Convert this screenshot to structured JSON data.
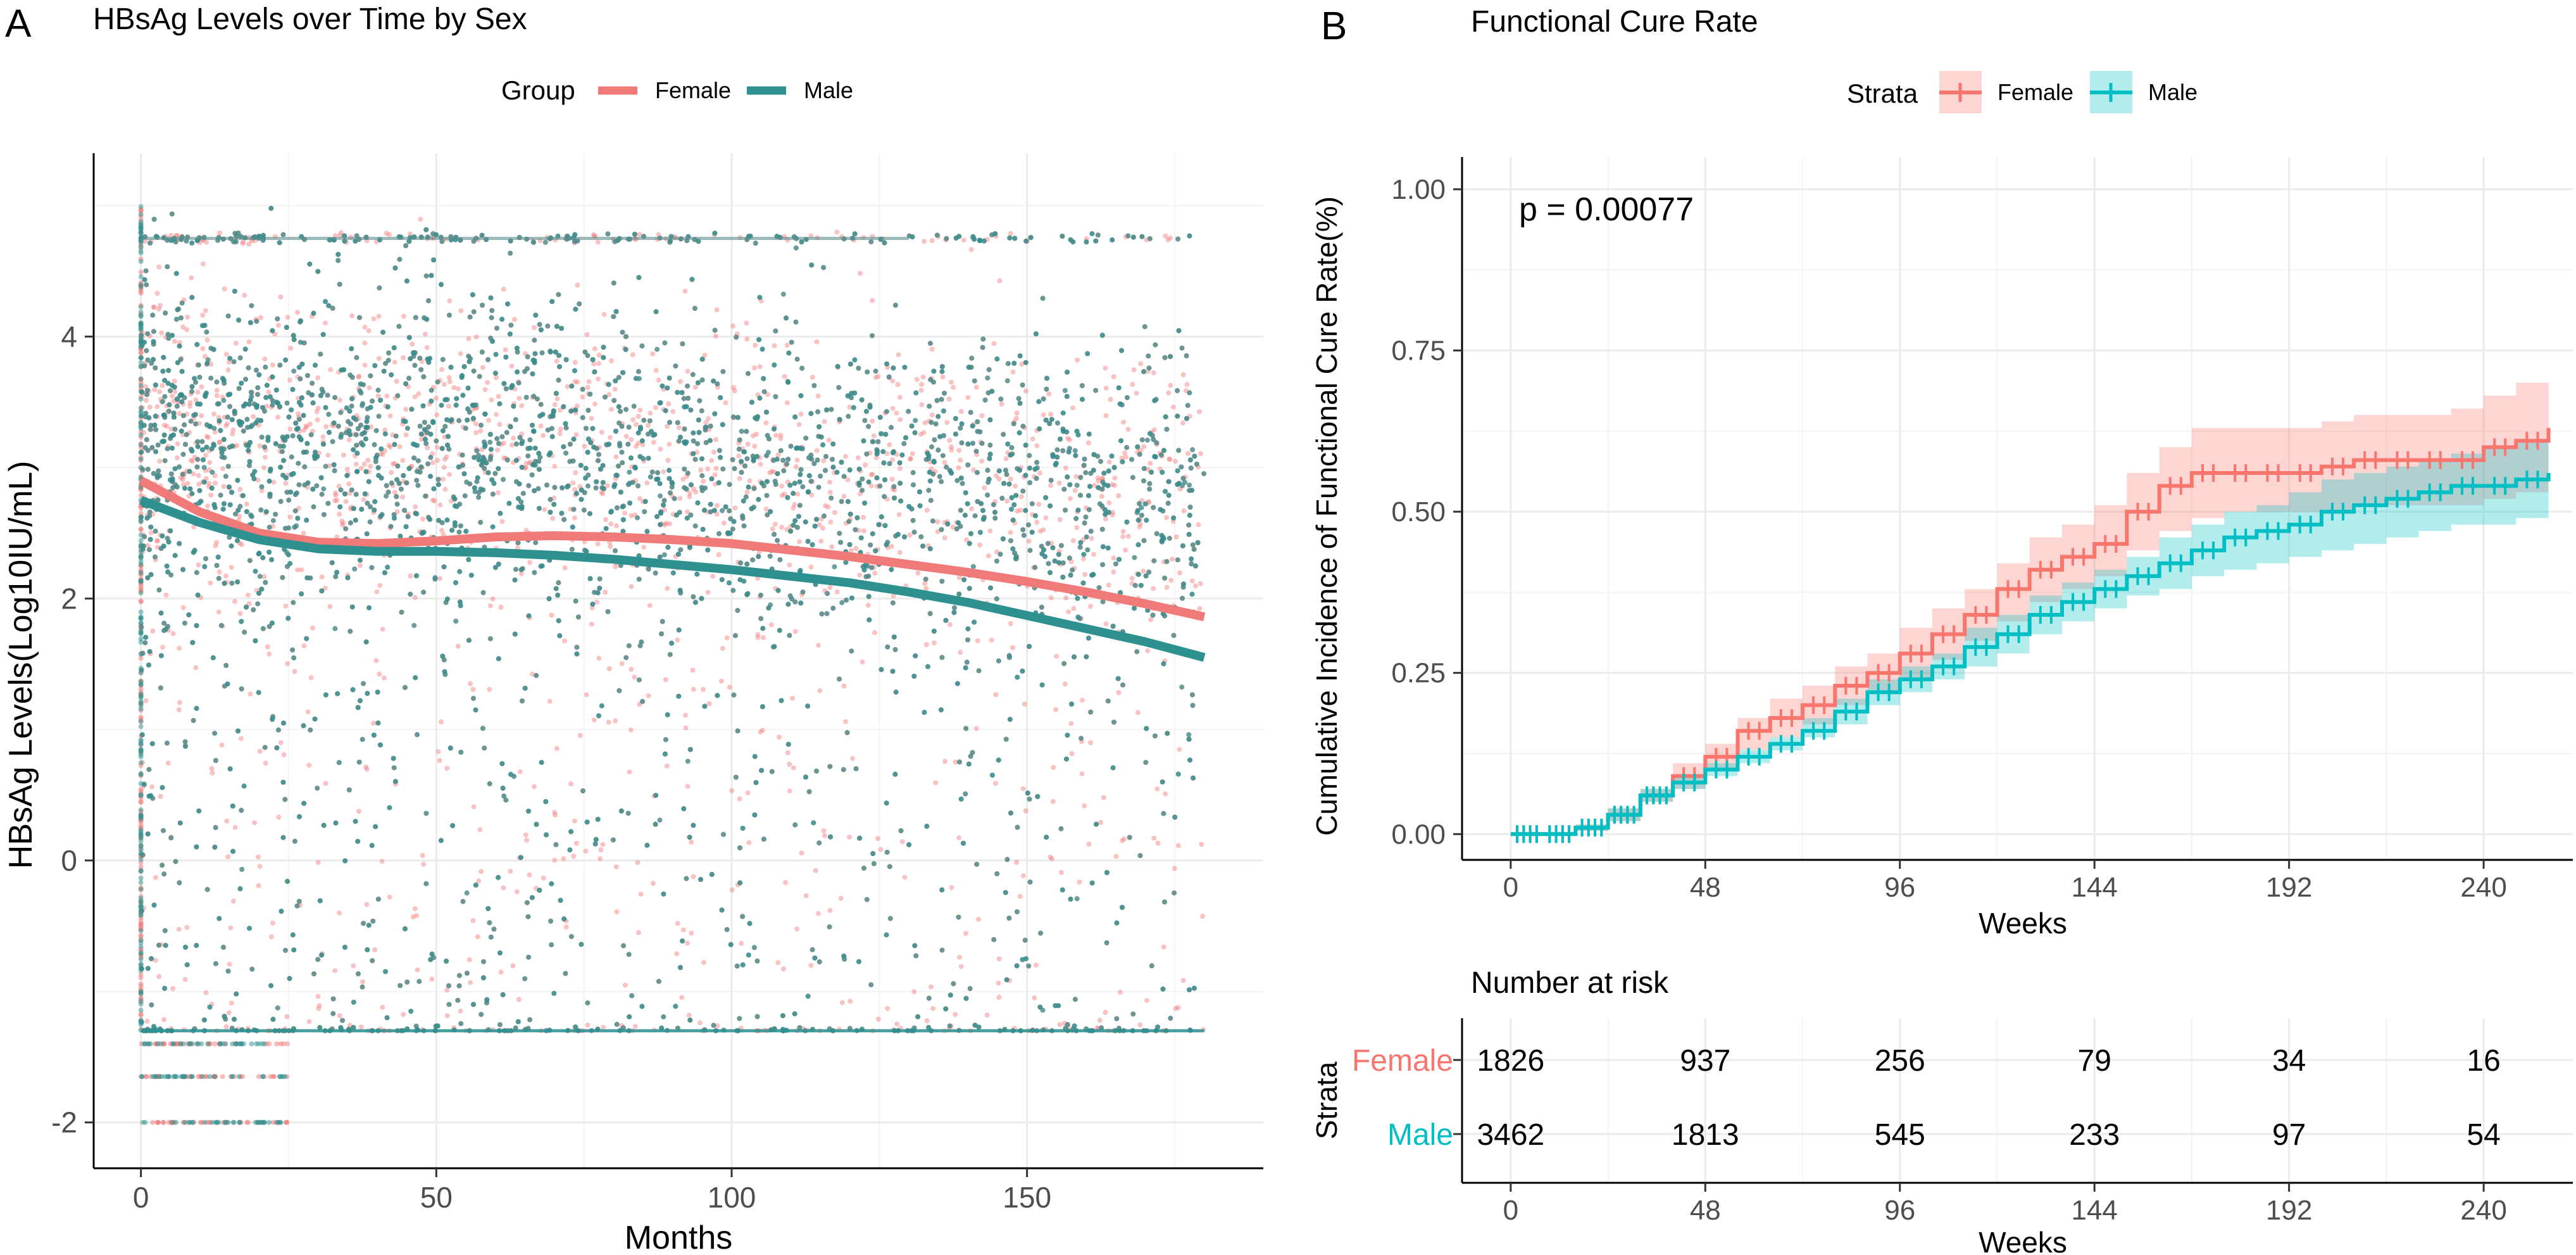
{
  "panel_labels": [
    "A",
    "B"
  ],
  "colors": {
    "female": "#F07A78",
    "male": "#2E9190",
    "female_km": "#F8766D",
    "male_km": "#00BFC4",
    "grid": "#EBEBEB",
    "axis": "#000000",
    "tick_text": "#4D4D4D"
  },
  "chart_data": [
    {
      "id": "A",
      "type": "scatter",
      "title": "HBsAg Levels over Time by Sex",
      "xlabel": "Months",
      "ylabel": "HBsAg Levels(Log10IU/mL)",
      "xlim": [
        -8,
        190
      ],
      "ylim": [
        -2.35,
        5.4
      ],
      "xticks": [
        0,
        50,
        100,
        150
      ],
      "yticks": [
        -2,
        0,
        2,
        4
      ],
      "grid": true,
      "legend": {
        "title": "Group",
        "position": "top",
        "entries": [
          "Female",
          "Male"
        ]
      },
      "series": [
        {
          "name": "Female",
          "smooth_x": [
            0,
            10,
            20,
            30,
            40,
            50,
            60,
            70,
            80,
            90,
            100,
            110,
            120,
            130,
            140,
            150,
            160,
            170,
            180
          ],
          "smooth_y": [
            2.9,
            2.66,
            2.5,
            2.43,
            2.42,
            2.44,
            2.47,
            2.48,
            2.47,
            2.45,
            2.42,
            2.37,
            2.32,
            2.26,
            2.2,
            2.13,
            2.05,
            1.96,
            1.86
          ]
        },
        {
          "name": "Male",
          "smooth_x": [
            0,
            10,
            20,
            30,
            40,
            50,
            60,
            70,
            80,
            90,
            100,
            110,
            120,
            130,
            140,
            150,
            160,
            170,
            180
          ],
          "smooth_y": [
            2.75,
            2.58,
            2.45,
            2.38,
            2.36,
            2.36,
            2.35,
            2.33,
            2.3,
            2.26,
            2.22,
            2.17,
            2.12,
            2.05,
            1.97,
            1.87,
            1.77,
            1.67,
            1.55
          ]
        }
      ],
      "scatter_model": {
        "points_per_series": 7000,
        "x_range": [
          0,
          180
        ],
        "y_range": [
          -1.3,
          5.0
        ],
        "floor_level": -1.3,
        "ceiling_level": 4.75,
        "early_low_levels": [
          -1.4,
          -1.65,
          -2.0
        ]
      }
    },
    {
      "id": "B",
      "type": "line",
      "title": "Functional Cure Rate",
      "xlabel": "Weeks",
      "ylabel": "Cumulative Incidence of Functional Cure Rate(%)",
      "xlim": [
        -12,
        262
      ],
      "ylim": [
        -0.04,
        1.05
      ],
      "xticks": [
        0,
        48,
        96,
        144,
        192,
        240
      ],
      "yticks": [
        0.0,
        0.25,
        0.5,
        0.75,
        1.0
      ],
      "ytick_labels": [
        "0.00",
        "0.25",
        "0.50",
        "0.75",
        "1.00"
      ],
      "grid": true,
      "annotation": "p = 0.00077",
      "legend": {
        "title": "Strata",
        "position": "top",
        "entries": [
          "Female",
          "Male"
        ]
      },
      "series": [
        {
          "name": "Female",
          "x": [
            0,
            8,
            16,
            24,
            32,
            40,
            48,
            56,
            64,
            72,
            80,
            88,
            96,
            104,
            112,
            120,
            128,
            136,
            144,
            152,
            160,
            168,
            176,
            184,
            192,
            200,
            208,
            216,
            224,
            232,
            240,
            248,
            256
          ],
          "y": [
            0,
            0,
            0.01,
            0.03,
            0.06,
            0.09,
            0.12,
            0.16,
            0.18,
            0.2,
            0.23,
            0.25,
            0.28,
            0.31,
            0.34,
            0.38,
            0.41,
            0.43,
            0.45,
            0.5,
            0.54,
            0.56,
            0.56,
            0.56,
            0.56,
            0.57,
            0.58,
            0.58,
            0.58,
            0.58,
            0.6,
            0.61,
            0.63
          ],
          "lower": [
            0,
            0,
            0.005,
            0.02,
            0.05,
            0.07,
            0.1,
            0.13,
            0.15,
            0.17,
            0.2,
            0.22,
            0.24,
            0.27,
            0.3,
            0.33,
            0.36,
            0.38,
            0.4,
            0.44,
            0.47,
            0.49,
            0.5,
            0.5,
            0.5,
            0.5,
            0.51,
            0.51,
            0.51,
            0.51,
            0.52,
            0.53,
            0.53
          ],
          "upper": [
            0,
            0,
            0.015,
            0.04,
            0.07,
            0.11,
            0.14,
            0.18,
            0.21,
            0.23,
            0.26,
            0.28,
            0.32,
            0.35,
            0.38,
            0.42,
            0.46,
            0.48,
            0.51,
            0.56,
            0.6,
            0.63,
            0.63,
            0.63,
            0.63,
            0.64,
            0.65,
            0.65,
            0.65,
            0.66,
            0.68,
            0.7,
            0.71
          ]
        },
        {
          "name": "Male",
          "x": [
            0,
            8,
            16,
            24,
            32,
            40,
            48,
            56,
            64,
            72,
            80,
            88,
            96,
            104,
            112,
            120,
            128,
            136,
            144,
            152,
            160,
            168,
            176,
            184,
            192,
            200,
            208,
            216,
            224,
            232,
            240,
            248,
            256
          ],
          "y": [
            0,
            0,
            0.01,
            0.03,
            0.06,
            0.08,
            0.1,
            0.12,
            0.14,
            0.16,
            0.19,
            0.22,
            0.24,
            0.26,
            0.29,
            0.31,
            0.34,
            0.36,
            0.38,
            0.4,
            0.42,
            0.44,
            0.46,
            0.47,
            0.48,
            0.5,
            0.51,
            0.52,
            0.53,
            0.54,
            0.54,
            0.55,
            0.56
          ],
          "lower": [
            0,
            0,
            0.005,
            0.02,
            0.05,
            0.07,
            0.09,
            0.11,
            0.13,
            0.15,
            0.17,
            0.2,
            0.22,
            0.24,
            0.26,
            0.28,
            0.31,
            0.33,
            0.35,
            0.37,
            0.38,
            0.4,
            0.41,
            0.42,
            0.43,
            0.44,
            0.45,
            0.46,
            0.47,
            0.48,
            0.48,
            0.49,
            0.49
          ],
          "upper": [
            0,
            0,
            0.015,
            0.04,
            0.07,
            0.09,
            0.11,
            0.13,
            0.15,
            0.18,
            0.21,
            0.24,
            0.26,
            0.28,
            0.32,
            0.34,
            0.37,
            0.39,
            0.41,
            0.43,
            0.46,
            0.48,
            0.5,
            0.51,
            0.53,
            0.55,
            0.56,
            0.57,
            0.58,
            0.59,
            0.6,
            0.61,
            0.62
          ]
        }
      ]
    },
    {
      "id": "B-risk",
      "type": "table",
      "title": "Number at risk",
      "xlabel": "Weeks",
      "ylabel": "Strata",
      "columns": [
        0,
        48,
        96,
        144,
        192,
        240
      ],
      "rows": [
        {
          "name": "Female",
          "values": [
            1826,
            937,
            256,
            79,
            34,
            16
          ]
        },
        {
          "name": "Male",
          "values": [
            3462,
            1813,
            545,
            233,
            97,
            54
          ]
        }
      ]
    }
  ]
}
